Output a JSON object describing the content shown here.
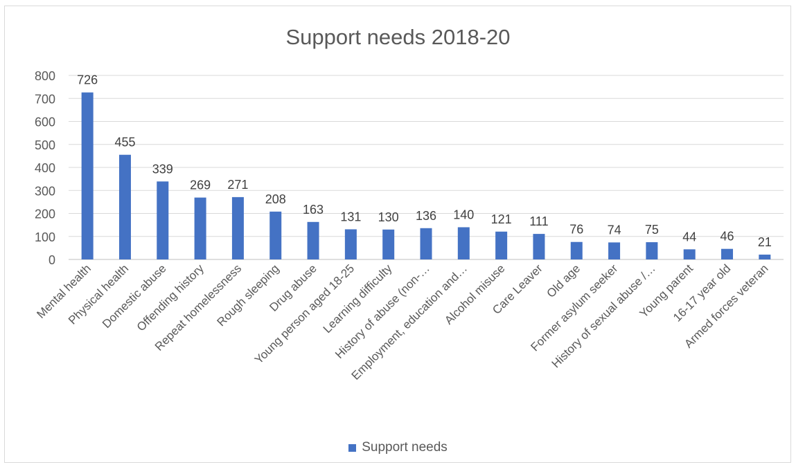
{
  "chart_data": {
    "type": "bar",
    "title": "Support needs 2018-20",
    "xlabel": "",
    "ylabel": "",
    "ylim": [
      0,
      800
    ],
    "yticks": [
      0,
      100,
      200,
      300,
      400,
      500,
      600,
      700,
      800
    ],
    "grid": true,
    "legend_position": "bottom",
    "categories": [
      "Mental health",
      "Physical health",
      "Domestic abuse",
      "Offending history",
      "Repeat homelessness",
      "Rough sleeping",
      "Drug abuse",
      "Young person aged 18-25",
      "Learning difficulty",
      "History of abuse (non-…",
      "Employment, education and…",
      "Alcohol misuse",
      "Care Leaver",
      "Old age",
      "Former asylum seeker",
      "History of sexual abuse /…",
      "Young parent",
      "16-17 year old",
      "Armed forces veteran"
    ],
    "series": [
      {
        "name": "Support needs",
        "color": "#4472c4",
        "values": [
          726,
          455,
          339,
          269,
          271,
          208,
          163,
          131,
          130,
          136,
          140,
          121,
          111,
          76,
          74,
          75,
          44,
          46,
          21
        ]
      }
    ]
  }
}
